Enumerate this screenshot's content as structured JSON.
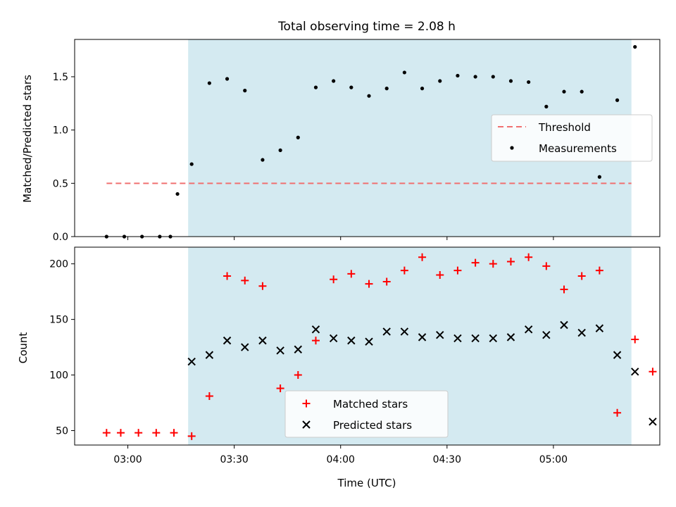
{
  "chart_data": [
    {
      "type": "scatter",
      "title": "Total observing time = 2.08 h",
      "ylabel": "Matched/Predicted stars",
      "xlabel": "",
      "xlim": [
        "02:45",
        "05:30"
      ],
      "ylim": [
        0,
        1.85
      ],
      "yticks": [
        0.0,
        0.5,
        1.0,
        1.5
      ],
      "ytick_labels": [
        "0.0",
        "0.5",
        "1.0",
        "1.5"
      ],
      "grid": false,
      "legend_position": "center-right",
      "shaded_interval": {
        "start": "03:17",
        "end": "05:22",
        "color": "#d4eaf1"
      },
      "threshold": {
        "name": "Threshold",
        "value": 0.5,
        "start": "02:54",
        "end": "05:22",
        "color": "#f07070"
      },
      "series": [
        {
          "name": "Measurements",
          "color": "#000000",
          "marker": "dot",
          "points": [
            [
              "02:54",
              0.0
            ],
            [
              "02:59",
              0.0
            ],
            [
              "03:04",
              0.0
            ],
            [
              "03:09",
              0.0
            ],
            [
              "03:12",
              0.0
            ],
            [
              "03:14",
              0.4
            ],
            [
              "03:18",
              0.68
            ],
            [
              "03:23",
              1.44
            ],
            [
              "03:28",
              1.48
            ],
            [
              "03:33",
              1.37
            ],
            [
              "03:38",
              0.72
            ],
            [
              "03:43",
              0.81
            ],
            [
              "03:48",
              0.93
            ],
            [
              "03:53",
              1.4
            ],
            [
              "03:58",
              1.46
            ],
            [
              "04:03",
              1.4
            ],
            [
              "04:08",
              1.32
            ],
            [
              "04:13",
              1.39
            ],
            [
              "04:18",
              1.54
            ],
            [
              "04:23",
              1.39
            ],
            [
              "04:28",
              1.46
            ],
            [
              "04:33",
              1.51
            ],
            [
              "04:38",
              1.5
            ],
            [
              "04:43",
              1.5
            ],
            [
              "04:48",
              1.46
            ],
            [
              "04:53",
              1.45
            ],
            [
              "04:58",
              1.22
            ],
            [
              "05:03",
              1.36
            ],
            [
              "05:08",
              1.36
            ],
            [
              "05:13",
              0.56
            ],
            [
              "05:18",
              1.28
            ],
            [
              "05:23",
              1.78
            ]
          ]
        }
      ]
    },
    {
      "type": "scatter",
      "title": "",
      "ylabel": "Count",
      "xlabel": "Time (UTC)",
      "xlim": [
        "02:45",
        "05:30"
      ],
      "ylim": [
        37,
        215
      ],
      "yticks": [
        50,
        100,
        150,
        200
      ],
      "ytick_labels": [
        "50",
        "100",
        "150",
        "200"
      ],
      "xtick_labels": [
        "03:00",
        "03:30",
        "04:00",
        "04:30",
        "05:00"
      ],
      "grid": false,
      "legend_position": "bottom-center",
      "shaded_interval": {
        "start": "03:17",
        "end": "05:22",
        "color": "#d4eaf1"
      },
      "series": [
        {
          "name": "Matched stars",
          "color": "#ff0000",
          "marker": "plus",
          "points": [
            [
              "02:54",
              48
            ],
            [
              "02:58",
              48
            ],
            [
              "03:03",
              48
            ],
            [
              "03:08",
              48
            ],
            [
              "03:13",
              48
            ],
            [
              "03:18",
              45
            ],
            [
              "03:23",
              81
            ],
            [
              "03:28",
              189
            ],
            [
              "03:33",
              185
            ],
            [
              "03:38",
              180
            ],
            [
              "03:43",
              88
            ],
            [
              "03:48",
              100
            ],
            [
              "03:53",
              131
            ],
            [
              "03:58",
              186
            ],
            [
              "04:03",
              191
            ],
            [
              "04:08",
              182
            ],
            [
              "04:13",
              184
            ],
            [
              "04:18",
              194
            ],
            [
              "04:23",
              206
            ],
            [
              "04:28",
              190
            ],
            [
              "04:33",
              194
            ],
            [
              "04:38",
              201
            ],
            [
              "04:43",
              200
            ],
            [
              "04:48",
              202
            ],
            [
              "04:53",
              206
            ],
            [
              "04:58",
              198
            ],
            [
              "05:03",
              177
            ],
            [
              "05:08",
              189
            ],
            [
              "05:13",
              194
            ],
            [
              "05:18",
              66
            ],
            [
              "05:23",
              132
            ],
            [
              "05:28",
              103
            ]
          ]
        },
        {
          "name": "Predicted stars",
          "color": "#000000",
          "marker": "x",
          "points": [
            [
              "03:18",
              112
            ],
            [
              "03:23",
              118
            ],
            [
              "03:28",
              131
            ],
            [
              "03:33",
              125
            ],
            [
              "03:38",
              131
            ],
            [
              "03:43",
              122
            ],
            [
              "03:48",
              123
            ],
            [
              "03:53",
              141
            ],
            [
              "03:58",
              133
            ],
            [
              "04:03",
              131
            ],
            [
              "04:08",
              130
            ],
            [
              "04:13",
              139
            ],
            [
              "04:18",
              139
            ],
            [
              "04:23",
              134
            ],
            [
              "04:28",
              136
            ],
            [
              "04:33",
              133
            ],
            [
              "04:38",
              133
            ],
            [
              "04:43",
              133
            ],
            [
              "04:48",
              134
            ],
            [
              "04:53",
              141
            ],
            [
              "04:58",
              136
            ],
            [
              "05:03",
              145
            ],
            [
              "05:08",
              138
            ],
            [
              "05:13",
              142
            ],
            [
              "05:18",
              118
            ],
            [
              "05:23",
              103
            ],
            [
              "05:28",
              58
            ]
          ]
        }
      ]
    }
  ]
}
